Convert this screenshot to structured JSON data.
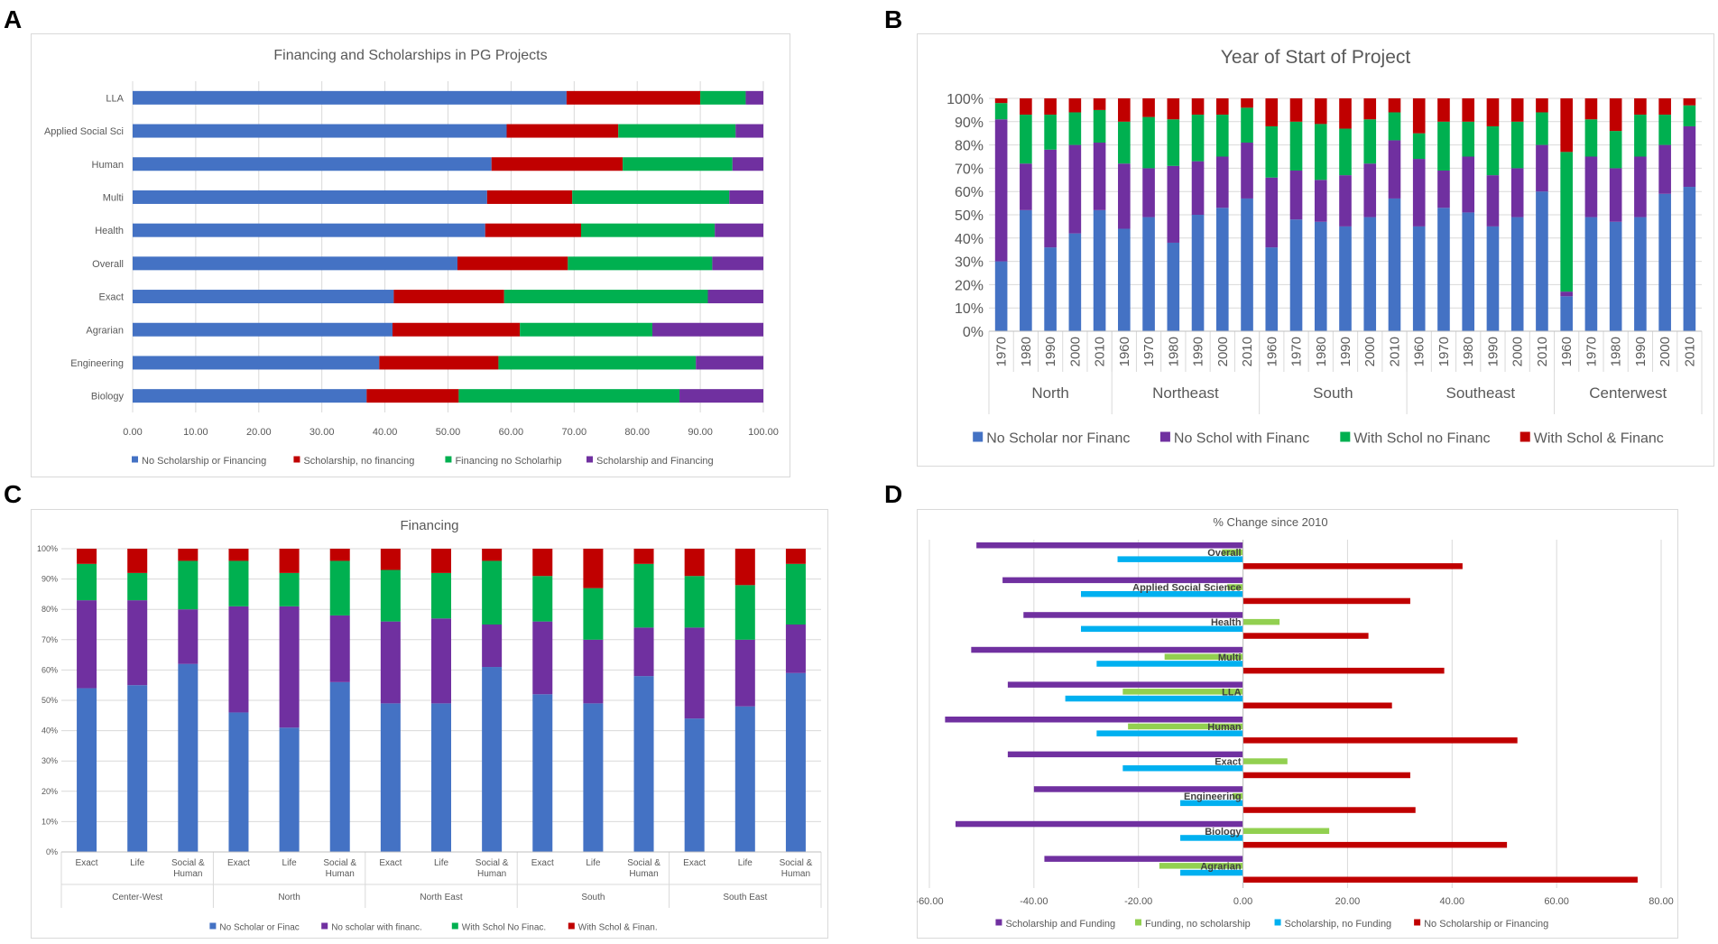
{
  "panels": [
    "A",
    "B",
    "C",
    "D"
  ],
  "colors": {
    "blue": "#4472C4",
    "red": "#C00000",
    "green": "#00B050",
    "purple": "#7030A0",
    "lightgreen": "#92D050",
    "cyan": "#00B0F0",
    "darkred": "#C00000",
    "grid": "#D9D9D9",
    "text": "#595959",
    "border": "#D9D9D9"
  },
  "chart_data": [
    {
      "id": "A",
      "type": "bar",
      "orientation": "horizontal",
      "stacked": true,
      "title": "Financing and Scholarships in PG Projects",
      "categories": [
        "LLA",
        "Applied Social Sci",
        "Human",
        "Multi",
        "Health",
        "Overall",
        "Exact",
        "Agrarian",
        "Engineering",
        "Biology"
      ],
      "series": [
        {
          "name": "No Scholarship or Financing",
          "color": "blue",
          "values": [
            68.8,
            59.3,
            56.9,
            56.2,
            55.9,
            51.5,
            41.4,
            41.2,
            39.1,
            37.1
          ]
        },
        {
          "name": "Scholarship, no financing",
          "color": "red",
          "values": [
            21.2,
            17.7,
            20.8,
            13.5,
            15.2,
            17.5,
            17.5,
            20.2,
            18.9,
            14.6
          ]
        },
        {
          "name": "Financing no Scholarhip",
          "color": "green",
          "values": [
            7.2,
            18.6,
            17.4,
            24.9,
            21.2,
            22.9,
            32.3,
            21.0,
            31.3,
            35.0
          ]
        },
        {
          "name": "Scholarship and Financing",
          "color": "purple",
          "values": [
            2.8,
            4.4,
            4.9,
            5.4,
            7.7,
            8.1,
            8.8,
            17.6,
            10.7,
            13.3
          ]
        }
      ],
      "xlim": [
        0,
        100
      ],
      "xticks": [
        "0.00",
        "10.00",
        "20.00",
        "30.00",
        "40.00",
        "50.00",
        "60.00",
        "70.00",
        "80.00",
        "90.00",
        "100.00"
      ],
      "legend": "bottom"
    },
    {
      "id": "B",
      "type": "bar",
      "stacked": true,
      "title": "Year of Start of Project",
      "groups": [
        {
          "name": "North",
          "years": [
            "1970",
            "1980",
            "1990",
            "2000",
            "2010"
          ]
        },
        {
          "name": "Northeast",
          "years": [
            "1960",
            "1970",
            "1980",
            "1990",
            "2000",
            "2010"
          ]
        },
        {
          "name": "South",
          "years": [
            "1960",
            "1970",
            "1980",
            "1990",
            "2000",
            "2010"
          ]
        },
        {
          "name": "Southeast",
          "years": [
            "1960",
            "1970",
            "1980",
            "1990",
            "2000",
            "2010"
          ]
        },
        {
          "name": "Centerwest",
          "years": [
            "1960",
            "1970",
            "1980",
            "1990",
            "2000",
            "2010"
          ]
        }
      ],
      "series": [
        {
          "name": "No Scholar nor Financ",
          "color": "blue",
          "values": [
            30,
            52,
            36,
            42,
            52,
            44,
            49,
            38,
            50,
            53,
            57,
            36,
            48,
            47,
            45,
            49,
            57,
            45,
            53,
            51,
            45,
            49,
            60,
            15,
            49,
            47,
            49,
            59,
            62
          ]
        },
        {
          "name": "No Schol with Financ",
          "color": "purple",
          "values": [
            61,
            20,
            42,
            38,
            29,
            28,
            21,
            33,
            23,
            22,
            24,
            30,
            21,
            18,
            22,
            23,
            25,
            29,
            16,
            24,
            22,
            21,
            20,
            2,
            26,
            23,
            26,
            21,
            26
          ]
        },
        {
          "name": "With Schol no Financ",
          "color": "green",
          "values": [
            7,
            21,
            15,
            14,
            14,
            18,
            22,
            20,
            20,
            18,
            15,
            22,
            21,
            24,
            20,
            19,
            12,
            11,
            21,
            15,
            21,
            20,
            14,
            60,
            16,
            16,
            18,
            13,
            9
          ]
        },
        {
          "name": "With Schol & Financ",
          "color": "red",
          "values": [
            2,
            7,
            7,
            6,
            5,
            10,
            8,
            9,
            7,
            7,
            4,
            12,
            10,
            11,
            13,
            9,
            6,
            15,
            10,
            10,
            12,
            10,
            6,
            23,
            9,
            14,
            7,
            7,
            3
          ]
        }
      ],
      "yticks": [
        "0%",
        "10%",
        "20%",
        "30%",
        "40%",
        "50%",
        "60%",
        "70%",
        "80%",
        "90%",
        "100%"
      ],
      "legend": "bottom"
    },
    {
      "id": "C",
      "type": "bar",
      "stacked": true,
      "title": "Financing",
      "groups": [
        {
          "name": "Center-West",
          "labels": [
            "Exact",
            "Life",
            "Social &\nHuman"
          ]
        },
        {
          "name": "North",
          "labels": [
            "Exact",
            "Life",
            "Social &\nHuman"
          ]
        },
        {
          "name": "North East",
          "labels": [
            "Exact",
            "Life",
            "Social &\nHuman"
          ]
        },
        {
          "name": "South",
          "labels": [
            "Exact",
            "Life",
            "Social &\nHuman"
          ]
        },
        {
          "name": "South East",
          "labels": [
            "Exact",
            "Life",
            "Social &\nHuman"
          ]
        }
      ],
      "series": [
        {
          "name": "No Scholar or Finac",
          "color": "blue",
          "values": [
            54,
            55,
            62,
            46,
            41,
            56,
            49,
            49,
            61,
            52,
            49,
            58,
            44,
            48,
            59
          ]
        },
        {
          "name": "No scholar with financ.",
          "color": "purple",
          "values": [
            29,
            28,
            18,
            35,
            40,
            22,
            27,
            28,
            14,
            24,
            21,
            16,
            30,
            22,
            16
          ]
        },
        {
          "name": "With Schol No Finac.",
          "color": "green",
          "values": [
            12,
            9,
            16,
            15,
            11,
            18,
            17,
            15,
            21,
            15,
            17,
            21,
            17,
            18,
            20
          ]
        },
        {
          "name": "With Schol & Finan.",
          "color": "red",
          "values": [
            5,
            8,
            4,
            4,
            8,
            4,
            7,
            8,
            4,
            9,
            13,
            5,
            9,
            12,
            5
          ]
        }
      ],
      "yticks": [
        "0%",
        "10%",
        "20%",
        "30%",
        "40%",
        "50%",
        "60%",
        "70%",
        "80%",
        "90%",
        "100%"
      ],
      "legend": "bottom"
    },
    {
      "id": "D",
      "type": "bar",
      "orientation": "horizontal",
      "title": "% Change since 2010",
      "categories": [
        "Overall",
        "Applied Social Science",
        "Health",
        "Multi",
        "LLA",
        "Human",
        "Exact",
        "Engineering",
        "Biology",
        "Agrarian"
      ],
      "series": [
        {
          "name": "Scholarship and Funding",
          "color": "purple",
          "values": [
            -51,
            -46,
            -42,
            -52,
            -45,
            -57,
            -45,
            -40,
            -55,
            -38
          ]
        },
        {
          "name": "Funding, no scholarship",
          "color": "lightgreen",
          "values": [
            -4,
            -3,
            7,
            -15,
            -23,
            -22,
            8.5,
            -2,
            16.5,
            -16
          ]
        },
        {
          "name": "Scholarship, no Funding",
          "color": "cyan",
          "values": [
            -24,
            -31,
            -31,
            -28,
            -34,
            -28,
            -23,
            -12,
            -12,
            -12
          ]
        },
        {
          "name": "No Scholarship or Financing",
          "color": "darkred",
          "values": [
            42,
            32,
            24,
            38.5,
            28.5,
            52.5,
            32,
            33,
            50.5,
            75.5
          ]
        }
      ],
      "xlim": [
        -60,
        80
      ],
      "xticks": [
        "-60.00",
        "-40.00",
        "-20.00",
        "0.00",
        "20.00",
        "40.00",
        "60.00",
        "80.00"
      ],
      "legend": "bottom"
    }
  ]
}
